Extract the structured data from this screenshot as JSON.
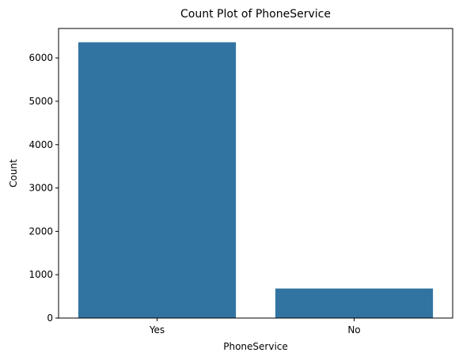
{
  "chart_data": {
    "type": "bar",
    "title": "Count Plot of PhoneService",
    "xlabel": "PhoneService",
    "ylabel": "Count",
    "categories": [
      "Yes",
      "No"
    ],
    "values": [
      6361,
      682
    ],
    "ylim": [
      0,
      6679
    ],
    "yticks": [
      0,
      1000,
      2000,
      3000,
      4000,
      5000,
      6000
    ],
    "bar_color": "#3274a1",
    "grid": false,
    "legend": "none"
  }
}
